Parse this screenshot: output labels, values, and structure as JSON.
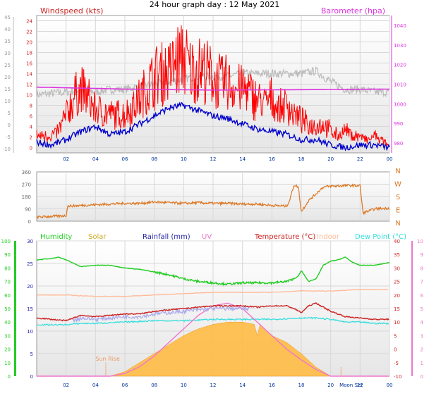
{
  "header": {
    "title": "24 hour graph day : 12 May 2021"
  },
  "colors": {
    "windspeed": "#cc2222",
    "gust": "#ff0000",
    "avgwind": "#0000cc",
    "baro": "#dd33dd",
    "dir": "#dd7722",
    "humidity": "#22cc22",
    "solar": "#ccaa22",
    "rain": "#2222aa",
    "uv": "#ee77cc",
    "temp": "#cc2222",
    "indoor": "#ffbb99",
    "dewpoint": "#33dddd",
    "solarfill": "#ffbb44",
    "grey": "#bbbbbb"
  },
  "chart_data": [
    {
      "type": "line",
      "title": "24 hour graph day : 12 May 2021",
      "x_ticks": [
        "02",
        "04",
        "06",
        "08",
        "10",
        "12",
        "14",
        "16",
        "18",
        "20",
        "22",
        "00"
      ],
      "left_axis": {
        "label": "Windspeed (kts)",
        "ylim": [
          -1,
          25
        ],
        "ticks": [
          "0",
          "2",
          "4",
          "6",
          "8",
          "10",
          "12",
          "14",
          "16",
          "18",
          "20",
          "22",
          "24"
        ]
      },
      "outer_axis": {
        "ticks": [
          "-10",
          "-5",
          "0",
          "5",
          "10",
          "15",
          "20",
          "25",
          "30",
          "35",
          "40",
          "45"
        ]
      },
      "right_axis": {
        "label": "Barometer (hpa)",
        "ylim": [
          975,
          1045
        ],
        "ticks": [
          "980",
          "990",
          "1000",
          "1010",
          "1020",
          "1030",
          "1040"
        ]
      },
      "series": [
        {
          "name": "gust",
          "axis": "left",
          "hours": [
            0,
            1,
            1.5,
            2,
            2.5,
            3,
            3.5,
            4,
            5,
            6,
            7,
            8,
            8.5,
            9,
            9.5,
            10,
            10.5,
            11,
            11.5,
            12,
            12.5,
            13,
            13.5,
            14,
            14.5,
            15,
            15.5,
            16,
            16.5,
            17,
            17.5,
            18,
            18.5,
            19,
            19.5,
            20,
            20.5,
            21,
            21.5,
            22,
            22.5,
            23,
            23.5,
            24
          ],
          "values": [
            2,
            2,
            3,
            6,
            9,
            11,
            9,
            7,
            6,
            6,
            9,
            13,
            14,
            14,
            16,
            17,
            14,
            15,
            14,
            13,
            12,
            12,
            11,
            11,
            10,
            9,
            8,
            9,
            7,
            8,
            6,
            5,
            4,
            4,
            4,
            3,
            2,
            3,
            2,
            2,
            1,
            2,
            1,
            0
          ]
        },
        {
          "name": "avg",
          "axis": "left",
          "hours": [
            0,
            1,
            1.5,
            2,
            3,
            4,
            5,
            6,
            7,
            8,
            9,
            10,
            11,
            12,
            13,
            14,
            15,
            16,
            17,
            18,
            19,
            20,
            21,
            22,
            23,
            24
          ],
          "values": [
            1,
            0.5,
            1,
            1.5,
            3,
            4,
            2.5,
            3,
            4.5,
            6,
            7.5,
            8,
            7,
            6,
            5.5,
            4.5,
            3.5,
            3,
            2.5,
            1.5,
            1.5,
            0.5,
            0,
            0.5,
            0.5,
            0
          ]
        },
        {
          "name": "grey",
          "axis": "left",
          "hours": [
            0,
            2,
            3,
            4,
            5,
            6,
            7,
            8,
            9,
            10,
            11,
            12,
            13,
            14,
            15,
            16,
            17,
            18,
            19,
            20,
            21,
            22,
            23,
            24
          ],
          "values": [
            10,
            10.5,
            11,
            10.5,
            11,
            11,
            11.5,
            12,
            12.5,
            13,
            13.5,
            13.5,
            13.5,
            14,
            14,
            14,
            14,
            14,
            14.5,
            12.5,
            11,
            11,
            10.5,
            10.5
          ]
        },
        {
          "name": "barometer",
          "axis": "right",
          "hours": [
            0,
            6,
            12,
            18,
            24
          ],
          "values": [
            1008.5,
            1007.5,
            1007,
            1007.2,
            1007.5
          ]
        }
      ]
    },
    {
      "type": "line",
      "y_ticks": [
        "0",
        "90",
        "180",
        "270",
        "360"
      ],
      "right_labels": [
        "N",
        "W",
        "S",
        "E",
        "N"
      ],
      "ylim": [
        0,
        360
      ],
      "series": [
        {
          "name": "direction",
          "hours": [
            0,
            1,
            2,
            2.1,
            3,
            4,
            5,
            6,
            7,
            8,
            9,
            10,
            11,
            12,
            13,
            14,
            15,
            16,
            17,
            17.2,
            17.5,
            17.8,
            18,
            18.5,
            19,
            19.5,
            20,
            21,
            22,
            22.2,
            23,
            24
          ],
          "values": [
            30,
            35,
            40,
            110,
            115,
            120,
            125,
            130,
            130,
            140,
            135,
            130,
            135,
            130,
            130,
            125,
            125,
            115,
            110,
            150,
            265,
            250,
            70,
            150,
            200,
            250,
            255,
            260,
            260,
            60,
            90,
            95
          ]
        }
      ]
    },
    {
      "type": "line",
      "x_ticks": [
        "02",
        "04",
        "06",
        "08",
        "10",
        "12",
        "14",
        "16",
        "18",
        "20",
        "22",
        "00"
      ],
      "legend": [
        "Humidity",
        "Solar",
        "Rainfall (mm)",
        "UV",
        "Temperature (°C)",
        "Indoor",
        "Dew Point (°C)"
      ],
      "left_outer_axis": {
        "ticks": [
          "0",
          "10",
          "20",
          "30",
          "40",
          "50",
          "60",
          "70",
          "80",
          "90",
          "100"
        ]
      },
      "left_inner_axis": {
        "ticks": [
          "0",
          "5",
          "10",
          "15",
          "20",
          "25",
          "30"
        ]
      },
      "right_inner_axis": {
        "ticks": [
          "-10",
          "-5",
          "0",
          "5",
          "10",
          "15",
          "20",
          "25",
          "30",
          "35",
          "40"
        ]
      },
      "right_outer_axis": {
        "ticks": [
          "0",
          "1",
          "2",
          "3",
          "4",
          "5",
          "6",
          "7",
          "8",
          "9",
          "10"
        ]
      },
      "annotations": [
        "Sun Rise",
        "Moon Set"
      ],
      "series": [
        {
          "name": "Humidity",
          "hours": [
            0,
            1,
            1.5,
            2,
            3,
            4,
            5,
            6,
            7,
            8,
            9,
            10,
            11,
            12,
            13,
            14,
            15,
            16,
            17,
            17.5,
            17.8,
            18,
            18.5,
            19,
            19.5,
            20,
            20.5,
            21,
            21.5,
            22,
            23,
            24
          ],
          "values": [
            86,
            87,
            88,
            86,
            81,
            82,
            82,
            80,
            79,
            77,
            75,
            72,
            70,
            69,
            68,
            69,
            69,
            69,
            70,
            72,
            74,
            78,
            70,
            72,
            82,
            85,
            86,
            88,
            84,
            82,
            82,
            84
          ]
        },
        {
          "name": "Temperature (°C)",
          "hours": [
            0,
            1,
            2,
            3,
            4,
            5,
            6,
            7,
            8,
            9,
            10,
            11,
            12,
            13,
            14,
            15,
            16,
            17,
            17.5,
            18,
            18.5,
            19,
            20,
            21,
            22,
            23,
            24
          ],
          "values": [
            11.5,
            11,
            10.5,
            12.5,
            12,
            12.5,
            13,
            13,
            14,
            14.5,
            15,
            15.5,
            16,
            16,
            16,
            15.5,
            16,
            16,
            15,
            13.5,
            16,
            17,
            14,
            12,
            11.5,
            11,
            11
          ]
        },
        {
          "name": "Dew Point (°C)",
          "hours": [
            0,
            2,
            3,
            4,
            6,
            8,
            10,
            12,
            14,
            16,
            18,
            19,
            20,
            21,
            22,
            23,
            24
          ],
          "values": [
            9,
            9,
            9.5,
            9.5,
            10,
            10.5,
            10.5,
            11,
            11,
            11,
            11.5,
            11.5,
            11,
            10,
            10,
            9.5,
            9.5
          ]
        },
        {
          "name": "Indoor",
          "hours": [
            0,
            2,
            4,
            6,
            8,
            10,
            12,
            14,
            16,
            18,
            20,
            22,
            24
          ],
          "values": [
            20,
            20,
            19.5,
            19.5,
            20,
            20.5,
            21,
            21,
            21,
            21.5,
            21.5,
            22,
            22
          ]
        },
        {
          "name": "Solar",
          "hours": [
            0,
            5,
            6,
            7,
            8,
            9,
            10,
            11,
            12,
            13,
            14,
            14.8,
            15,
            15.2,
            16,
            17,
            18,
            19,
            19.5,
            20,
            24
          ],
          "values": [
            0,
            0,
            1,
            3,
            5,
            7,
            9,
            10.5,
            11.5,
            12,
            12,
            11.5,
            9,
            11.5,
            9,
            7.5,
            5,
            2,
            1,
            0,
            0
          ]
        },
        {
          "name": "UV",
          "hours": [
            0,
            5,
            6,
            7,
            8,
            9,
            10,
            11,
            12,
            13,
            14,
            15,
            16,
            17,
            18,
            19,
            20,
            24
          ],
          "values": [
            0,
            0,
            0.2,
            0.7,
            1.5,
            2.5,
            3.5,
            4.5,
            5.2,
            5.4,
            5,
            4,
            3,
            2,
            1.2,
            0.5,
            0,
            0
          ]
        }
      ]
    }
  ]
}
